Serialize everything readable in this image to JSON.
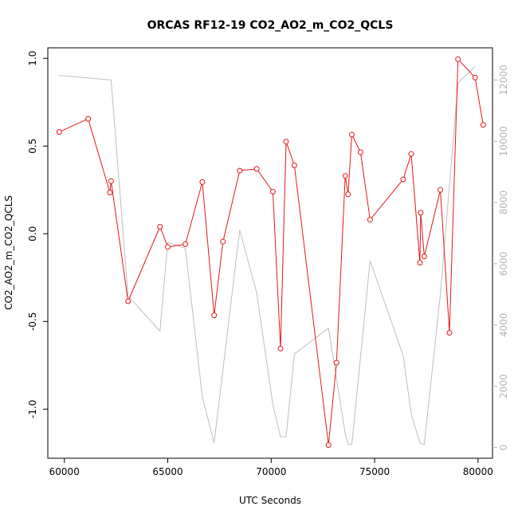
{
  "chart_data": {
    "type": "line",
    "title": "ORCAS RF12-19 CO2_AO2_m_CO2_QCLS",
    "xlabel": "UTC Seconds",
    "ylabel": "CO2_AO2_m_CO2_QCLS",
    "xlim": [
      59200,
      80700
    ],
    "ylim": [
      -1.28,
      1.06
    ],
    "xticks": [
      60000,
      65000,
      70000,
      75000,
      80000
    ],
    "yticks": [
      -1.0,
      -0.5,
      0.0,
      0.5,
      1.0
    ],
    "ytick_labels": [
      "-1.0",
      "-0.5",
      "0.0",
      "0.5",
      "1.0"
    ],
    "y2lim": [
      -350,
      13050
    ],
    "y2ticks": [
      0,
      2000,
      4000,
      6000,
      8000,
      10000,
      12000
    ],
    "colors": {
      "primary": "#e8161b",
      "secondary": "#bebebe",
      "axis": "#000000",
      "axis_right": "#b4b4b4"
    },
    "series": [
      {
        "axis": "left",
        "marker": "open-circle",
        "x": [
          59750,
          61150,
          62200,
          62260,
          63080,
          64620,
          65000,
          65850,
          66670,
          67240,
          67670,
          68480,
          69300,
          70080,
          70450,
          70720,
          71120,
          72770,
          73160,
          73580,
          73720,
          73900,
          74320,
          74780,
          76380,
          76770,
          77190,
          77230,
          77400,
          78180,
          78620,
          79030,
          79860,
          80250
        ],
        "y": [
          0.58,
          0.655,
          0.235,
          0.3,
          -0.385,
          0.04,
          -0.075,
          -0.06,
          0.295,
          -0.465,
          -0.045,
          0.36,
          0.37,
          0.24,
          -0.655,
          0.525,
          0.39,
          -1.205,
          -0.735,
          0.33,
          0.225,
          0.565,
          0.465,
          0.08,
          0.31,
          0.455,
          -0.165,
          0.12,
          -0.13,
          0.25,
          -0.565,
          0.995,
          0.89,
          0.62
        ]
      },
      {
        "axis": "right",
        "marker": "none",
        "x": [
          59750,
          62260,
          63080,
          64620,
          65000,
          65850,
          66670,
          67240,
          68480,
          69300,
          70080,
          70450,
          70720,
          71120,
          72770,
          73580,
          73720,
          73900,
          74780,
          76380,
          76770,
          77190,
          77400,
          78180,
          79030,
          79860
        ],
        "y": [
          12150,
          12000,
          4950,
          3800,
          6700,
          6500,
          1650,
          150,
          7100,
          5050,
          1400,
          350,
          350,
          3050,
          3900,
          450,
          100,
          100,
          6100,
          3000,
          1100,
          150,
          100,
          5000,
          11900,
          12450
        ]
      }
    ]
  }
}
